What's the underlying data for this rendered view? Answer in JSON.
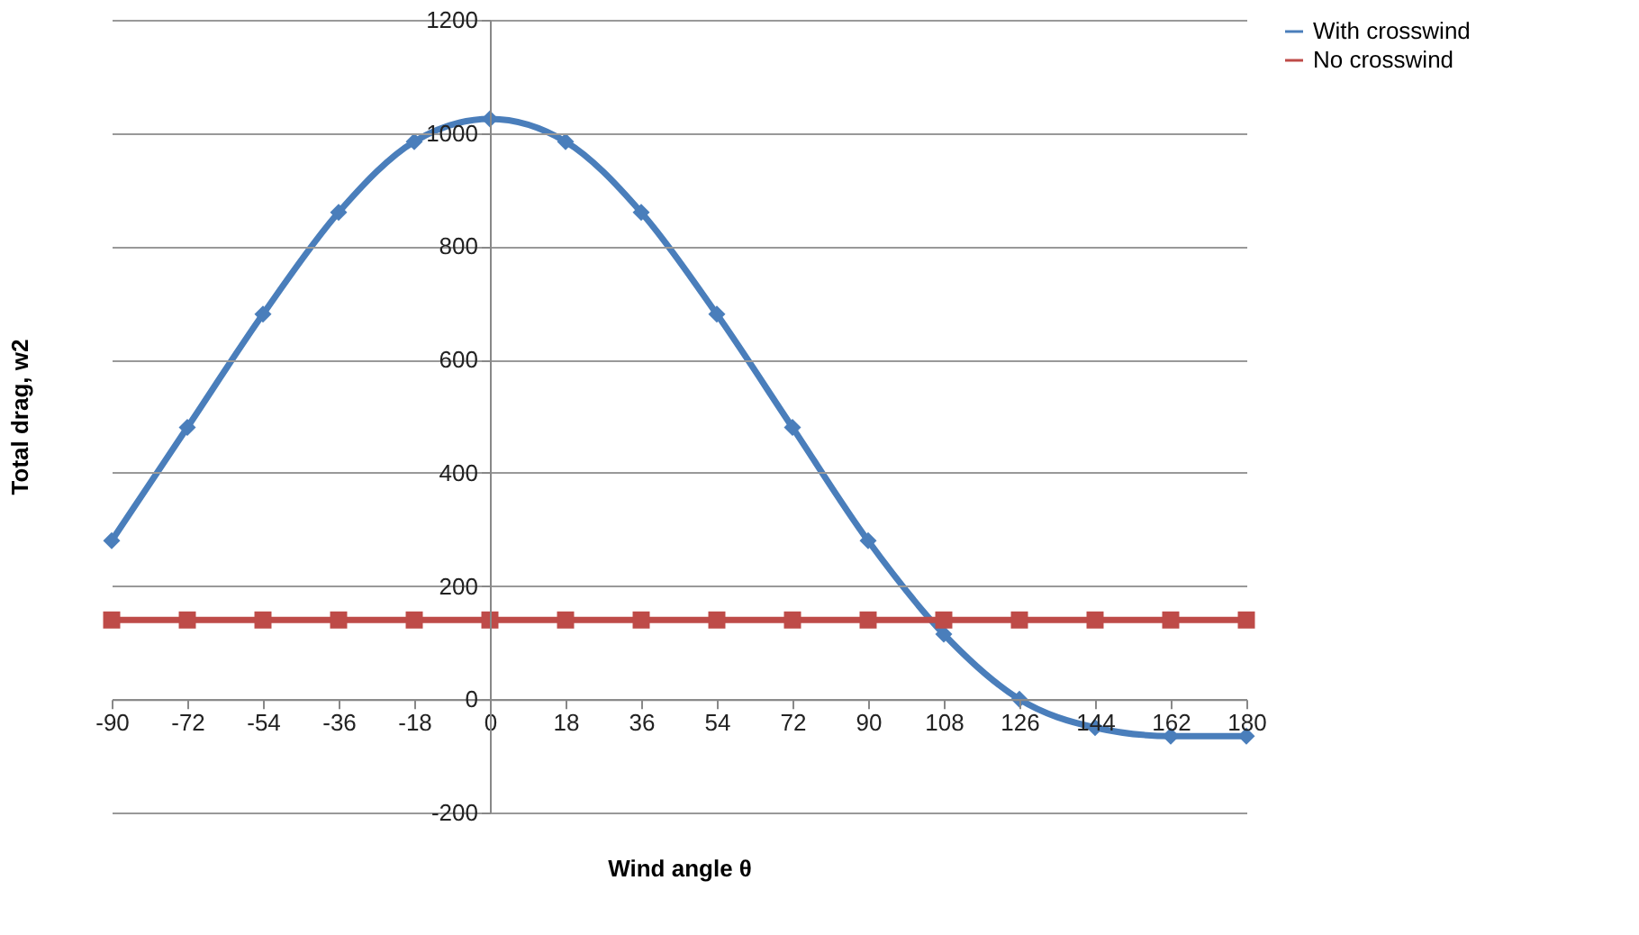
{
  "chart_data": {
    "type": "line",
    "xlabel": "Wind angle θ",
    "ylabel": "Total drag, w2",
    "x": [
      -90,
      -72,
      -54,
      -36,
      -18,
      0,
      18,
      36,
      54,
      72,
      90,
      108,
      126,
      144,
      162,
      180
    ],
    "series": [
      {
        "name": "With crosswind",
        "color": "#4a7ebb",
        "marker": "diamond",
        "values": [
          280,
          480,
          680,
          860,
          985,
          1025,
          985,
          860,
          680,
          480,
          280,
          115,
          0,
          -50,
          -65,
          -65
        ]
      },
      {
        "name": "No crosswind",
        "color": "#be4b48",
        "marker": "square",
        "values": [
          140,
          140,
          140,
          140,
          140,
          140,
          140,
          140,
          140,
          140,
          140,
          140,
          140,
          140,
          140,
          140
        ]
      }
    ],
    "xlim": [
      -90,
      180
    ],
    "xticks": [
      -90,
      -72,
      -54,
      -36,
      -18,
      0,
      18,
      36,
      54,
      72,
      90,
      108,
      126,
      144,
      162,
      180
    ],
    "ylim": [
      -200,
      1200
    ],
    "yticks": [
      -200,
      0,
      200,
      400,
      600,
      800,
      1000,
      1200
    ],
    "grid": "y",
    "legend": "right",
    "line_style": "solid"
  }
}
